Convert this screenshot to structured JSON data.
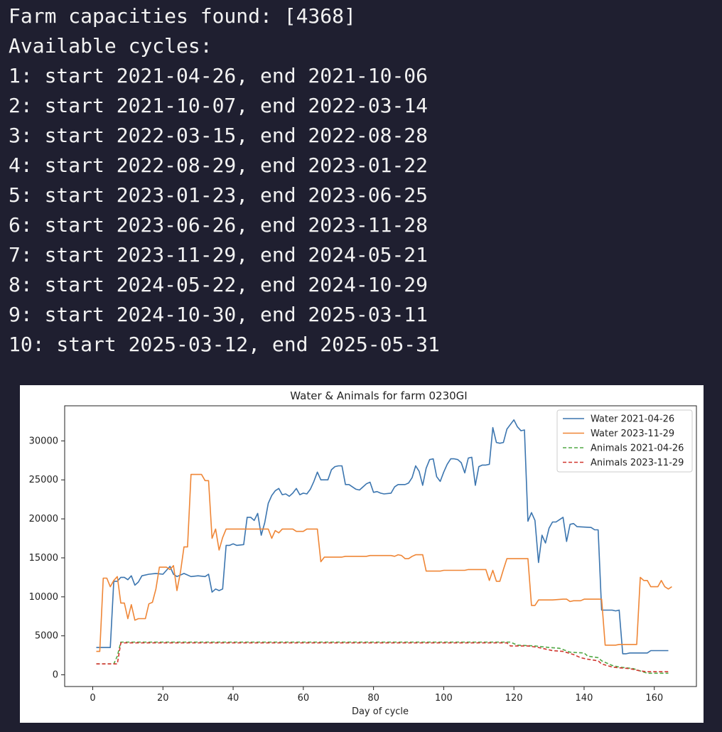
{
  "console": {
    "lines": [
      "Farm capacities found: [4368]",
      "Available cycles:",
      "1: start 2021-04-26, end 2021-10-06",
      "2: start 2021-10-07, end 2022-03-14",
      "3: start 2022-03-15, end 2022-08-28",
      "4: start 2022-08-29, end 2023-01-22",
      "5: start 2023-01-23, end 2023-06-25",
      "6: start 2023-06-26, end 2023-11-28",
      "7: start 2023-11-29, end 2024-05-21",
      "8: start 2024-05-22, end 2024-10-29",
      "9: start 2024-10-30, end 2025-03-11",
      "10: start 2025-03-12, end 2025-05-31"
    ]
  },
  "chart_data": {
    "type": "line",
    "title": "Water & Animals for farm 0230GI",
    "xlabel": "Day of cycle",
    "ylabel": "",
    "xlim": [
      -8,
      172
    ],
    "ylim": [
      -1500,
      34500
    ],
    "xticks": [
      0,
      20,
      40,
      60,
      80,
      100,
      120,
      140,
      160
    ],
    "yticks": [
      0,
      5000,
      10000,
      15000,
      20000,
      25000,
      30000
    ],
    "grid": false,
    "legend_position": "top-right",
    "series": [
      {
        "name": "Water 2021-04-26",
        "color": "#3b75af",
        "style": "solid",
        "points": [
          [
            1,
            3500
          ],
          [
            5,
            3500
          ],
          [
            6,
            12000
          ],
          [
            7,
            12000
          ],
          [
            8,
            12500
          ],
          [
            9,
            12500
          ],
          [
            10,
            12200
          ],
          [
            11,
            12700
          ],
          [
            12,
            11500
          ],
          [
            13,
            11900
          ],
          [
            14,
            12700
          ],
          [
            16,
            12900
          ],
          [
            18,
            13000
          ],
          [
            20,
            12900
          ],
          [
            22,
            13900
          ],
          [
            23,
            12900
          ],
          [
            24,
            12600
          ],
          [
            26,
            13000
          ],
          [
            28,
            12600
          ],
          [
            30,
            12700
          ],
          [
            32,
            12600
          ],
          [
            33,
            12900
          ],
          [
            34,
            10600
          ],
          [
            35,
            11000
          ],
          [
            36,
            10800
          ],
          [
            37,
            11000
          ],
          [
            38,
            16600
          ],
          [
            39,
            16600
          ],
          [
            40,
            16800
          ],
          [
            41,
            16600
          ],
          [
            43,
            16700
          ],
          [
            44,
            20200
          ],
          [
            45,
            20200
          ],
          [
            46,
            19800
          ],
          [
            47,
            20700
          ],
          [
            48,
            17900
          ],
          [
            49,
            19500
          ],
          [
            50,
            22000
          ],
          [
            51,
            23000
          ],
          [
            52,
            23600
          ],
          [
            53,
            23900
          ],
          [
            54,
            23100
          ],
          [
            55,
            23200
          ],
          [
            56,
            22900
          ],
          [
            57,
            23300
          ],
          [
            58,
            23900
          ],
          [
            59,
            23100
          ],
          [
            60,
            23300
          ],
          [
            61,
            23200
          ],
          [
            62,
            23800
          ],
          [
            63,
            24800
          ],
          [
            64,
            26000
          ],
          [
            65,
            25000
          ],
          [
            67,
            25000
          ],
          [
            68,
            26300
          ],
          [
            69,
            26700
          ],
          [
            70,
            26800
          ],
          [
            71,
            26800
          ],
          [
            72,
            24400
          ],
          [
            73,
            24400
          ],
          [
            75,
            23800
          ],
          [
            76,
            23700
          ],
          [
            77,
            24100
          ],
          [
            78,
            24500
          ],
          [
            79,
            24700
          ],
          [
            80,
            23400
          ],
          [
            81,
            23500
          ],
          [
            82,
            23300
          ],
          [
            83,
            23200
          ],
          [
            85,
            23300
          ],
          [
            86,
            24100
          ],
          [
            87,
            24400
          ],
          [
            89,
            24400
          ],
          [
            90,
            24600
          ],
          [
            91,
            25300
          ],
          [
            92,
            26800
          ],
          [
            93,
            26100
          ],
          [
            94,
            24300
          ],
          [
            95,
            26500
          ],
          [
            96,
            27600
          ],
          [
            97,
            27700
          ],
          [
            98,
            25400
          ],
          [
            99,
            24800
          ],
          [
            100,
            26000
          ],
          [
            101,
            27000
          ],
          [
            102,
            27700
          ],
          [
            103,
            27700
          ],
          [
            104,
            27600
          ],
          [
            105,
            27200
          ],
          [
            106,
            25900
          ],
          [
            107,
            27800
          ],
          [
            108,
            27900
          ],
          [
            109,
            24300
          ],
          [
            110,
            26700
          ],
          [
            111,
            26900
          ],
          [
            112,
            26900
          ],
          [
            113,
            27000
          ],
          [
            114,
            31700
          ],
          [
            115,
            29800
          ],
          [
            116,
            29700
          ],
          [
            117,
            29800
          ],
          [
            118,
            31500
          ],
          [
            119,
            32100
          ],
          [
            120,
            32700
          ],
          [
            121,
            31800
          ],
          [
            122,
            31300
          ],
          [
            123,
            31400
          ],
          [
            124,
            19700
          ],
          [
            125,
            20800
          ],
          [
            126,
            19800
          ],
          [
            127,
            14400
          ],
          [
            128,
            17900
          ],
          [
            129,
            16900
          ],
          [
            130,
            18800
          ],
          [
            131,
            19600
          ],
          [
            132,
            19600
          ],
          [
            133,
            19900
          ],
          [
            134,
            20200
          ],
          [
            135,
            17100
          ],
          [
            136,
            19300
          ],
          [
            137,
            19400
          ],
          [
            138,
            19000
          ],
          [
            142,
            18900
          ],
          [
            143,
            18600
          ],
          [
            144,
            18600
          ],
          [
            145,
            8300
          ],
          [
            148,
            8300
          ],
          [
            149,
            8200
          ],
          [
            150,
            8300
          ],
          [
            151,
            2700
          ],
          [
            152,
            2700
          ],
          [
            153,
            2800
          ],
          [
            158,
            2800
          ],
          [
            159,
            3100
          ],
          [
            164,
            3100
          ]
        ]
      },
      {
        "name": "Water 2023-11-29",
        "color": "#ef8636",
        "style": "solid",
        "points": [
          [
            1,
            3000
          ],
          [
            2,
            3000
          ],
          [
            3,
            12400
          ],
          [
            4,
            12400
          ],
          [
            5,
            11300
          ],
          [
            6,
            12100
          ],
          [
            7,
            12600
          ],
          [
            8,
            9200
          ],
          [
            9,
            9200
          ],
          [
            10,
            7200
          ],
          [
            11,
            9000
          ],
          [
            12,
            7000
          ],
          [
            13,
            7200
          ],
          [
            15,
            7200
          ],
          [
            16,
            9100
          ],
          [
            17,
            9300
          ],
          [
            18,
            11000
          ],
          [
            19,
            13800
          ],
          [
            21,
            13800
          ],
          [
            22,
            13500
          ],
          [
            23,
            14000
          ],
          [
            24,
            10800
          ],
          [
            25,
            13200
          ],
          [
            26,
            16400
          ],
          [
            27,
            16400
          ],
          [
            28,
            25700
          ],
          [
            31,
            25700
          ],
          [
            32,
            24900
          ],
          [
            33,
            24900
          ],
          [
            34,
            17500
          ],
          [
            35,
            18700
          ],
          [
            36,
            16000
          ],
          [
            37,
            17600
          ],
          [
            38,
            18700
          ],
          [
            50,
            18700
          ],
          [
            51,
            17500
          ],
          [
            52,
            18500
          ],
          [
            53,
            18200
          ],
          [
            54,
            18700
          ],
          [
            57,
            18700
          ],
          [
            58,
            18400
          ],
          [
            60,
            18400
          ],
          [
            61,
            18700
          ],
          [
            64,
            18700
          ],
          [
            65,
            14500
          ],
          [
            66,
            15100
          ],
          [
            71,
            15100
          ],
          [
            72,
            15200
          ],
          [
            78,
            15200
          ],
          [
            79,
            15300
          ],
          [
            85,
            15300
          ],
          [
            86,
            15200
          ],
          [
            87,
            15400
          ],
          [
            88,
            15300
          ],
          [
            89,
            14900
          ],
          [
            90,
            14900
          ],
          [
            91,
            15200
          ],
          [
            92,
            15400
          ],
          [
            94,
            15400
          ],
          [
            95,
            13300
          ],
          [
            99,
            13300
          ],
          [
            100,
            13400
          ],
          [
            106,
            13400
          ],
          [
            107,
            13500
          ],
          [
            112,
            13500
          ],
          [
            113,
            12100
          ],
          [
            114,
            13400
          ],
          [
            115,
            12000
          ],
          [
            116,
            12000
          ],
          [
            117,
            13500
          ],
          [
            118,
            14900
          ],
          [
            124,
            14900
          ],
          [
            125,
            8900
          ],
          [
            126,
            8900
          ],
          [
            127,
            9600
          ],
          [
            131,
            9600
          ],
          [
            134,
            9700
          ],
          [
            135,
            9700
          ],
          [
            136,
            9400
          ],
          [
            137,
            9500
          ],
          [
            139,
            9500
          ],
          [
            140,
            9700
          ],
          [
            145,
            9700
          ],
          [
            146,
            3800
          ],
          [
            149,
            3800
          ],
          [
            150,
            3900
          ],
          [
            155,
            3900
          ],
          [
            156,
            12500
          ],
          [
            157,
            12100
          ],
          [
            158,
            12100
          ],
          [
            159,
            11300
          ],
          [
            161,
            11300
          ],
          [
            162,
            12100
          ],
          [
            163,
            11300
          ],
          [
            164,
            11000
          ],
          [
            165,
            11300
          ]
        ]
      },
      {
        "name": "Animals 2021-04-26",
        "color": "#51a845",
        "style": "dashed",
        "points": [
          [
            1,
            1400
          ],
          [
            6,
            1400
          ],
          [
            7,
            2400
          ],
          [
            8,
            4200
          ],
          [
            116,
            4200
          ],
          [
            119,
            4200
          ],
          [
            121,
            3800
          ],
          [
            126,
            3700
          ],
          [
            130,
            3500
          ],
          [
            133,
            3400
          ],
          [
            136,
            2900
          ],
          [
            140,
            2800
          ],
          [
            141,
            2400
          ],
          [
            144,
            2200
          ],
          [
            145,
            1800
          ],
          [
            148,
            1200
          ],
          [
            150,
            1000
          ],
          [
            154,
            800
          ],
          [
            156,
            500
          ],
          [
            158,
            200
          ],
          [
            164,
            200
          ]
        ]
      },
      {
        "name": "Animals 2023-11-29",
        "color": "#d1362e",
        "style": "dashed",
        "points": [
          [
            1,
            1400
          ],
          [
            7,
            1400
          ],
          [
            8,
            4100
          ],
          [
            118,
            4100
          ],
          [
            119,
            3700
          ],
          [
            124,
            3700
          ],
          [
            127,
            3500
          ],
          [
            131,
            3100
          ],
          [
            134,
            3000
          ],
          [
            137,
            2600
          ],
          [
            139,
            2200
          ],
          [
            141,
            2000
          ],
          [
            144,
            1800
          ],
          [
            145,
            1400
          ],
          [
            148,
            1000
          ],
          [
            150,
            900
          ],
          [
            153,
            800
          ],
          [
            156,
            500
          ],
          [
            158,
            400
          ],
          [
            164,
            400
          ]
        ]
      }
    ]
  }
}
